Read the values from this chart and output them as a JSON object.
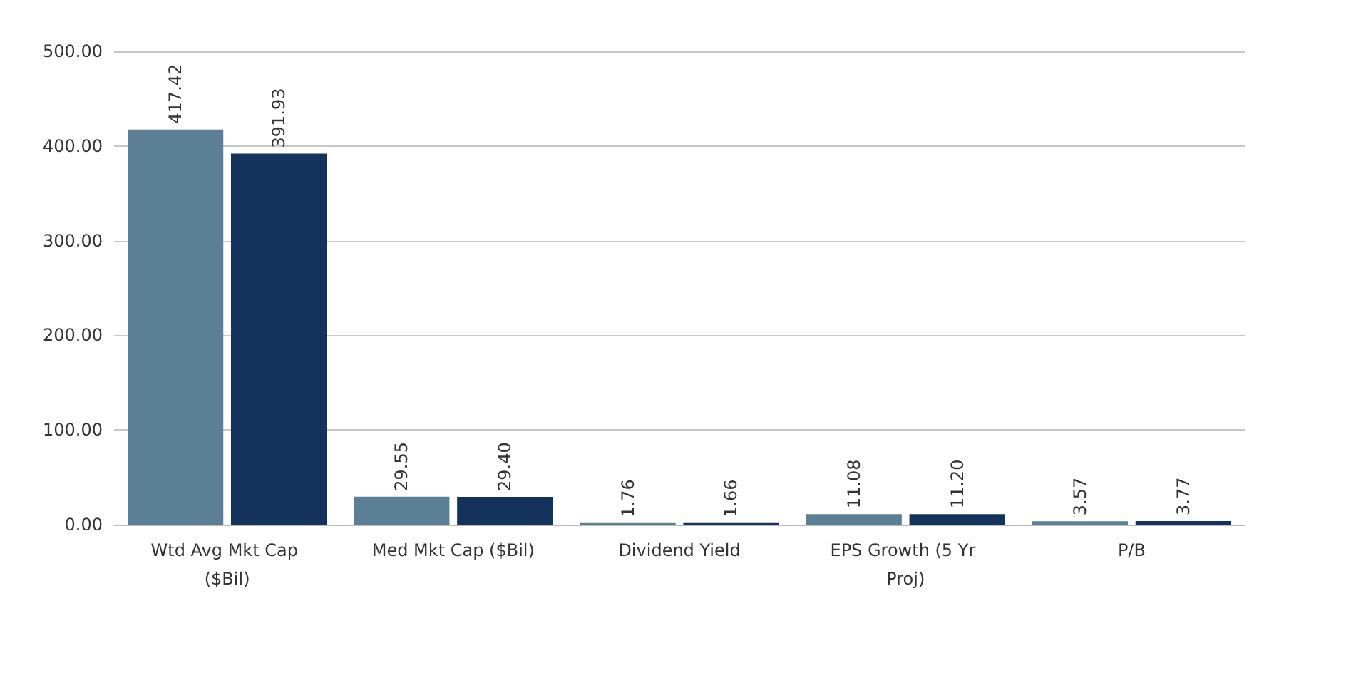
{
  "chart_data": {
    "type": "bar",
    "categories": [
      "Wtd Avg Mkt Cap ($Bil)",
      "Med Mkt Cap ($Bil)",
      "Dividend Yield",
      "EPS Growth (5 Yr Proj)",
      "P/B"
    ],
    "series": [
      {
        "color": "#5b7f95",
        "values": [
          417.42,
          29.55,
          1.76,
          11.08,
          3.57
        ]
      },
      {
        "color": "#14335c",
        "values": [
          391.93,
          29.4,
          1.66,
          11.2,
          3.77
        ]
      }
    ],
    "value_labels": [
      [
        "417.42",
        "29.55",
        "1.76",
        "11.08",
        "3.57"
      ],
      [
        "391.93",
        "29.40",
        "1.66",
        "11.20",
        "3.77"
      ]
    ],
    "ylim": [
      0,
      500
    ],
    "yticks": [
      {
        "value": 0,
        "label": "0.00"
      },
      {
        "value": 100,
        "label": "100.00"
      },
      {
        "value": 200,
        "label": "200.00"
      },
      {
        "value": 300,
        "label": "300.00"
      },
      {
        "value": 400,
        "label": "400.00"
      },
      {
        "value": 500,
        "label": "500.00"
      }
    ],
    "grid": "y"
  }
}
